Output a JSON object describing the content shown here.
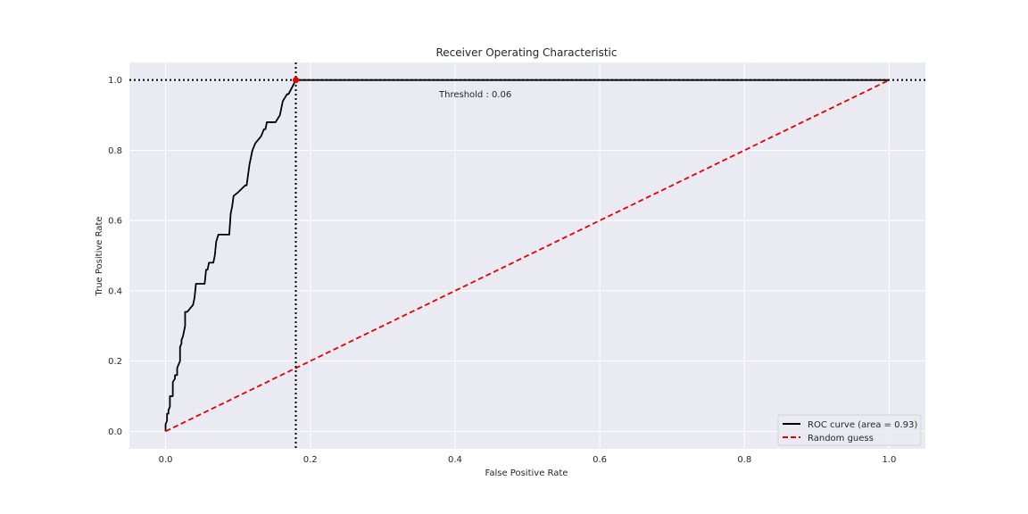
{
  "chart_data": {
    "type": "line",
    "title": "Receiver Operating Characteristic",
    "xlabel": "False Positive Rate",
    "ylabel": "True Positive Rate",
    "xlim": [
      -0.05,
      1.05
    ],
    "ylim": [
      -0.05,
      1.05
    ],
    "xticks": [
      0.0,
      0.2,
      0.4,
      0.6,
      0.8,
      1.0
    ],
    "yticks": [
      0.0,
      0.2,
      0.4,
      0.6,
      0.8,
      1.0
    ],
    "xtick_labels": [
      "0.0",
      "0.2",
      "0.4",
      "0.6",
      "0.8",
      "1.0"
    ],
    "ytick_labels": [
      "0.0",
      "0.2",
      "0.4",
      "0.6",
      "0.8",
      "1.0"
    ],
    "grid": true,
    "legend_position": "bottom-right",
    "series": [
      {
        "name": "ROC curve (area = 0.93)",
        "color": "#000000",
        "style": "solid",
        "x": [
          0.0,
          0.0,
          0.002,
          0.002,
          0.004,
          0.004,
          0.006,
          0.006,
          0.01,
          0.01,
          0.013,
          0.013,
          0.016,
          0.016,
          0.02,
          0.02,
          0.022,
          0.022,
          0.024,
          0.025,
          0.027,
          0.027,
          0.028,
          0.03,
          0.038,
          0.04,
          0.042,
          0.044,
          0.054,
          0.056,
          0.058,
          0.06,
          0.066,
          0.068,
          0.07,
          0.073,
          0.088,
          0.09,
          0.092,
          0.094,
          0.1,
          0.11,
          0.112,
          0.116,
          0.118,
          0.12,
          0.124,
          0.132,
          0.136,
          0.138,
          0.14,
          0.152,
          0.158,
          0.162,
          0.168,
          0.17,
          0.175,
          0.18,
          1.0
        ],
        "y": [
          0.0,
          0.02,
          0.03,
          0.05,
          0.05,
          0.06,
          0.07,
          0.1,
          0.1,
          0.14,
          0.15,
          0.16,
          0.16,
          0.18,
          0.2,
          0.24,
          0.25,
          0.26,
          0.27,
          0.28,
          0.3,
          0.34,
          0.34,
          0.34,
          0.36,
          0.38,
          0.42,
          0.42,
          0.42,
          0.46,
          0.46,
          0.48,
          0.48,
          0.5,
          0.54,
          0.56,
          0.56,
          0.62,
          0.64,
          0.67,
          0.68,
          0.7,
          0.7,
          0.76,
          0.78,
          0.8,
          0.82,
          0.84,
          0.86,
          0.86,
          0.88,
          0.88,
          0.9,
          0.94,
          0.96,
          0.96,
          0.98,
          1.0,
          1.0
        ]
      },
      {
        "name": "Random guess",
        "color": "#e50000",
        "style": "dashed",
        "x": [
          0.0,
          1.0
        ],
        "y": [
          0.0,
          1.0
        ]
      }
    ],
    "threshold_point": {
      "x": 0.18,
      "y": 1.0,
      "color": "#e50000"
    },
    "annotation": "Threshold : 0.06"
  }
}
